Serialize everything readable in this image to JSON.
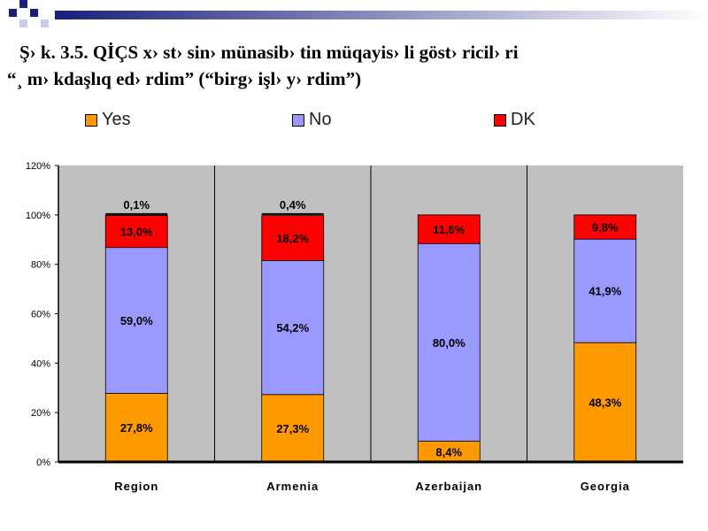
{
  "title": {
    "line1": "Ş› k. 3.5. QİÇS x› st› sin›  münasib› tin müqayis› li göst› ricil› ri",
    "line2": "“¸ m› kdaşlıq ed› rdim” (“birg›  işl› y› rdim”)"
  },
  "colors": {
    "Yes": "#ff9900",
    "No": "#9999ff",
    "DK": "#ff0000",
    "plot_bg": "#c0c0c0"
  },
  "chart_data": {
    "type": "bar",
    "stacked": true,
    "categories": [
      "Region",
      "Armenia",
      "Azerbaijan",
      "Georgia"
    ],
    "series": [
      {
        "name": "Yes",
        "values": [
          27.8,
          27.3,
          8.4,
          48.3
        ]
      },
      {
        "name": "No",
        "values": [
          59.0,
          54.2,
          80.0,
          41.9
        ]
      },
      {
        "name": "DK",
        "values": [
          13.0,
          18.2,
          11.6,
          9.8
        ]
      }
    ],
    "labels": [
      [
        "27,8%",
        "59,0%",
        "13,0%"
      ],
      [
        "27,3%",
        "54,2%",
        "18,2%"
      ],
      [
        "8,4%",
        "80,0%",
        "11,6%"
      ],
      [
        "48,3%",
        "41,9%",
        "9,8%"
      ]
    ],
    "top_labels": [
      "0,1%",
      "0,4%",
      "",
      ""
    ],
    "yticks": [
      "0%",
      "20%",
      "40%",
      "60%",
      "80%",
      "100%",
      "120%"
    ],
    "ylim": [
      0,
      120
    ],
    "grid": false,
    "legend": "top"
  }
}
